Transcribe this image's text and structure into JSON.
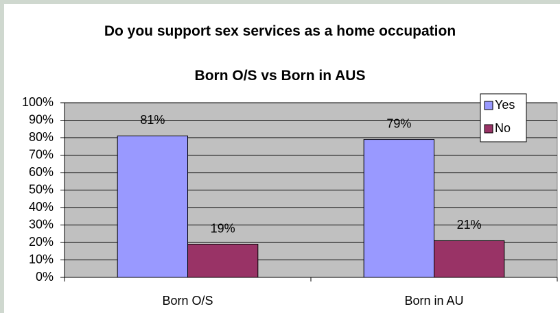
{
  "chart_data": {
    "type": "bar",
    "title": "Do you support sex services as a home occupation",
    "subtitle": "Born O/S vs Born in AUS",
    "categories": [
      "Born O/S",
      "Born in AU"
    ],
    "series": [
      {
        "name": "Yes",
        "color": "#9999ff",
        "values": [
          81,
          79
        ],
        "value_labels": [
          "81%",
          "79%"
        ]
      },
      {
        "name": "No",
        "color": "#993366",
        "values": [
          19,
          21
        ],
        "value_labels": [
          "19%",
          "21%"
        ]
      }
    ],
    "ylim": [
      0,
      100
    ],
    "yticks": [
      {
        "value": 0,
        "label": "0%"
      },
      {
        "value": 10,
        "label": "10%"
      },
      {
        "value": 20,
        "label": "20%"
      },
      {
        "value": 30,
        "label": "30%"
      },
      {
        "value": 40,
        "label": "40%"
      },
      {
        "value": 50,
        "label": "50%"
      },
      {
        "value": 60,
        "label": "60%"
      },
      {
        "value": 70,
        "label": "70%"
      },
      {
        "value": 80,
        "label": "80%"
      },
      {
        "value": 90,
        "label": "90%"
      },
      {
        "value": 100,
        "label": "100%"
      }
    ],
    "grid": true,
    "legend": "top-right"
  }
}
